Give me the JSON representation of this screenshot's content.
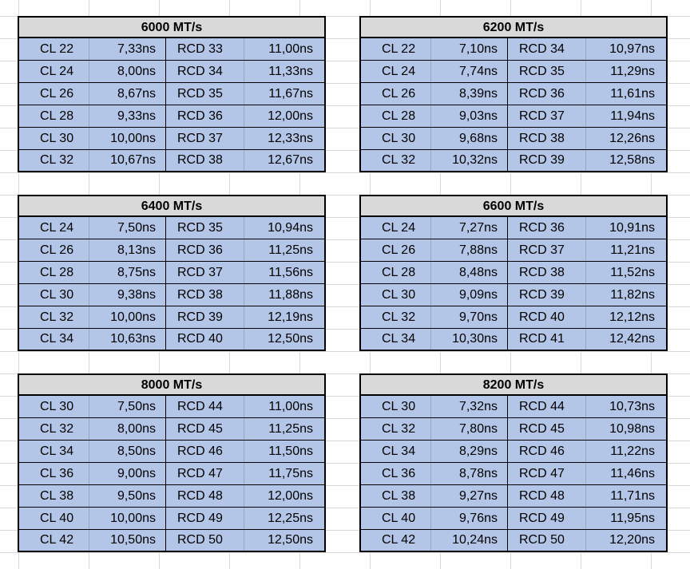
{
  "tables": [
    {
      "title": "6000 MT/s",
      "rows": [
        {
          "cl": "CL 22",
          "cl_ns": "7,33ns",
          "rcd": "RCD 33",
          "rcd_ns": "11,00ns"
        },
        {
          "cl": "CL 24",
          "cl_ns": "8,00ns",
          "rcd": "RCD 34",
          "rcd_ns": "11,33ns"
        },
        {
          "cl": "CL 26",
          "cl_ns": "8,67ns",
          "rcd": "RCD 35",
          "rcd_ns": "11,67ns"
        },
        {
          "cl": "CL 28",
          "cl_ns": "9,33ns",
          "rcd": "RCD 36",
          "rcd_ns": "12,00ns"
        },
        {
          "cl": "CL 30",
          "cl_ns": "10,00ns",
          "rcd": "RCD 37",
          "rcd_ns": "12,33ns"
        },
        {
          "cl": "CL 32",
          "cl_ns": "10,67ns",
          "rcd": "RCD 38",
          "rcd_ns": "12,67ns"
        }
      ]
    },
    {
      "title": "6200 MT/s",
      "rows": [
        {
          "cl": "CL 22",
          "cl_ns": "7,10ns",
          "rcd": "RCD 34",
          "rcd_ns": "10,97ns"
        },
        {
          "cl": "CL 24",
          "cl_ns": "7,74ns",
          "rcd": "RCD 35",
          "rcd_ns": "11,29ns"
        },
        {
          "cl": "CL 26",
          "cl_ns": "8,39ns",
          "rcd": "RCD 36",
          "rcd_ns": "11,61ns"
        },
        {
          "cl": "CL 28",
          "cl_ns": "9,03ns",
          "rcd": "RCD 37",
          "rcd_ns": "11,94ns"
        },
        {
          "cl": "CL 30",
          "cl_ns": "9,68ns",
          "rcd": "RCD 38",
          "rcd_ns": "12,26ns"
        },
        {
          "cl": "CL 32",
          "cl_ns": "10,32ns",
          "rcd": "RCD 39",
          "rcd_ns": "12,58ns"
        }
      ]
    },
    {
      "title": "6400 MT/s",
      "rows": [
        {
          "cl": "CL 24",
          "cl_ns": "7,50ns",
          "rcd": "RCD 35",
          "rcd_ns": "10,94ns"
        },
        {
          "cl": "CL 26",
          "cl_ns": "8,13ns",
          "rcd": "RCD 36",
          "rcd_ns": "11,25ns"
        },
        {
          "cl": "CL 28",
          "cl_ns": "8,75ns",
          "rcd": "RCD 37",
          "rcd_ns": "11,56ns"
        },
        {
          "cl": "CL 30",
          "cl_ns": "9,38ns",
          "rcd": "RCD 38",
          "rcd_ns": "11,88ns"
        },
        {
          "cl": "CL 32",
          "cl_ns": "10,00ns",
          "rcd": "RCD 39",
          "rcd_ns": "12,19ns"
        },
        {
          "cl": "CL 34",
          "cl_ns": "10,63ns",
          "rcd": "RCD 40",
          "rcd_ns": "12,50ns"
        }
      ]
    },
    {
      "title": "6600 MT/s",
      "rows": [
        {
          "cl": "CL 24",
          "cl_ns": "7,27ns",
          "rcd": "RCD 36",
          "rcd_ns": "10,91ns"
        },
        {
          "cl": "CL 26",
          "cl_ns": "7,88ns",
          "rcd": "RCD 37",
          "rcd_ns": "11,21ns"
        },
        {
          "cl": "CL 28",
          "cl_ns": "8,48ns",
          "rcd": "RCD 38",
          "rcd_ns": "11,52ns"
        },
        {
          "cl": "CL 30",
          "cl_ns": "9,09ns",
          "rcd": "RCD 39",
          "rcd_ns": "11,82ns"
        },
        {
          "cl": "CL 32",
          "cl_ns": "9,70ns",
          "rcd": "RCD 40",
          "rcd_ns": "12,12ns"
        },
        {
          "cl": "CL 34",
          "cl_ns": "10,30ns",
          "rcd": "RCD 41",
          "rcd_ns": "12,42ns"
        }
      ]
    },
    {
      "title": "8000 MT/s",
      "rows": [
        {
          "cl": "CL 30",
          "cl_ns": "7,50ns",
          "rcd": "RCD 44",
          "rcd_ns": "11,00ns"
        },
        {
          "cl": "CL 32",
          "cl_ns": "8,00ns",
          "rcd": "RCD 45",
          "rcd_ns": "11,25ns"
        },
        {
          "cl": "CL 34",
          "cl_ns": "8,50ns",
          "rcd": "RCD 46",
          "rcd_ns": "11,50ns"
        },
        {
          "cl": "CL 36",
          "cl_ns": "9,00ns",
          "rcd": "RCD 47",
          "rcd_ns": "11,75ns"
        },
        {
          "cl": "CL 38",
          "cl_ns": "9,50ns",
          "rcd": "RCD 48",
          "rcd_ns": "12,00ns"
        },
        {
          "cl": "CL 40",
          "cl_ns": "10,00ns",
          "rcd": "RCD 49",
          "rcd_ns": "12,25ns"
        },
        {
          "cl": "CL 42",
          "cl_ns": "10,50ns",
          "rcd": "RCD 50",
          "rcd_ns": "12,50ns"
        }
      ]
    },
    {
      "title": "8200 MT/s",
      "rows": [
        {
          "cl": "CL 30",
          "cl_ns": "7,32ns",
          "rcd": "RCD 44",
          "rcd_ns": "10,73ns"
        },
        {
          "cl": "CL 32",
          "cl_ns": "7,80ns",
          "rcd": "RCD 45",
          "rcd_ns": "10,98ns"
        },
        {
          "cl": "CL 34",
          "cl_ns": "8,29ns",
          "rcd": "RCD 46",
          "rcd_ns": "11,22ns"
        },
        {
          "cl": "CL 36",
          "cl_ns": "8,78ns",
          "rcd": "RCD 47",
          "rcd_ns": "11,46ns"
        },
        {
          "cl": "CL 38",
          "cl_ns": "9,27ns",
          "rcd": "RCD 48",
          "rcd_ns": "11,71ns"
        },
        {
          "cl": "CL 40",
          "cl_ns": "9,76ns",
          "rcd": "RCD 49",
          "rcd_ns": "11,95ns"
        },
        {
          "cl": "CL 42",
          "cl_ns": "10,24ns",
          "rcd": "RCD 50",
          "rcd_ns": "12,20ns"
        }
      ]
    }
  ],
  "colors": {
    "header_fill": "#d9d9d9",
    "cell_fill": "#b4c6e7",
    "gridline": "#d9d9d9",
    "border": "#000000"
  }
}
